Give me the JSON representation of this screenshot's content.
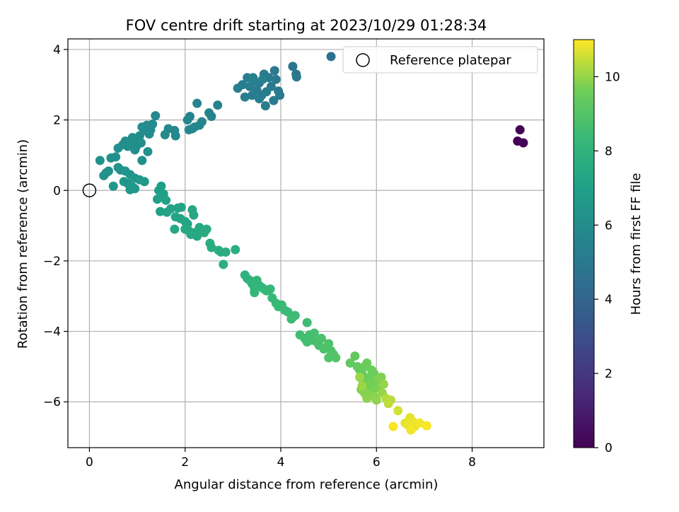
{
  "chart_data": {
    "type": "scatter",
    "title": "FOV centre drift starting at 2023/10/29 01:28:34",
    "xlabel": "Angular distance from reference (arcmin)",
    "ylabel": "Rotation from reference (arcmin)",
    "xlim": [
      -0.45,
      9.5
    ],
    "ylim": [
      -7.3,
      4.3
    ],
    "xticks": [
      0,
      2,
      4,
      6,
      8
    ],
    "xtick_labels": [
      "0",
      "2",
      "4",
      "6",
      "8"
    ],
    "yticks": [
      -6,
      -4,
      -2,
      0,
      2,
      4
    ],
    "ytick_labels": [
      "−6",
      "−4",
      "−2",
      "0",
      "2",
      "4"
    ],
    "grid": true,
    "legend": {
      "position": "top-right",
      "entries": [
        "Reference platepar"
      ]
    },
    "reference_point": {
      "x": 0,
      "y": 0,
      "label": "Reference platepar"
    },
    "colorbar": {
      "label": "Hours from first FF file",
      "range": [
        0,
        11
      ],
      "ticks": [
        0,
        2,
        4,
        6,
        8,
        10
      ],
      "tick_labels": [
        "0",
        "2",
        "4",
        "6",
        "8",
        "10"
      ],
      "colormap": "viridis"
    },
    "points": [
      [
        8.95,
        1.4,
        0.0
      ],
      [
        9.0,
        1.72,
        0.05
      ],
      [
        9.07,
        1.35,
        0.1
      ],
      [
        5.05,
        3.8,
        4.6
      ],
      [
        4.25,
        3.52,
        4.8
      ],
      [
        4.32,
        3.3,
        4.85
      ],
      [
        4.33,
        3.22,
        4.9
      ],
      [
        3.87,
        3.4,
        5.0
      ],
      [
        3.9,
        3.15,
        5.0
      ],
      [
        3.95,
        2.82,
        5.05
      ],
      [
        3.98,
        2.7,
        5.05
      ],
      [
        3.85,
        2.55,
        5.1
      ],
      [
        3.8,
        2.95,
        5.1
      ],
      [
        3.75,
        3.2,
        5.1
      ],
      [
        3.7,
        2.8,
        5.15
      ],
      [
        3.68,
        2.4,
        5.15
      ],
      [
        3.65,
        3.3,
        5.15
      ],
      [
        3.6,
        2.7,
        5.2
      ],
      [
        3.55,
        3.05,
        5.2
      ],
      [
        3.5,
        2.85,
        5.2
      ],
      [
        3.45,
        3.1,
        5.25
      ],
      [
        3.4,
        2.7,
        5.25
      ],
      [
        3.35,
        2.95,
        5.3
      ],
      [
        3.3,
        3.2,
        5.3
      ],
      [
        3.25,
        2.65,
        5.3
      ],
      [
        3.2,
        3.0,
        5.35
      ],
      [
        3.1,
        2.9,
        5.35
      ],
      [
        3.55,
        2.6,
        5.35
      ],
      [
        3.62,
        3.15,
        5.4
      ],
      [
        3.42,
        3.2,
        5.4
      ],
      [
        2.68,
        2.42,
        5.5
      ],
      [
        2.5,
        2.2,
        5.55
      ],
      [
        2.55,
        2.1,
        5.55
      ],
      [
        2.25,
        2.47,
        5.6
      ],
      [
        2.35,
        1.95,
        5.6
      ],
      [
        2.3,
        1.85,
        5.65
      ],
      [
        2.1,
        2.1,
        5.65
      ],
      [
        2.05,
        2.0,
        5.7
      ],
      [
        2.15,
        1.75,
        5.7
      ],
      [
        2.2,
        1.8,
        5.75
      ],
      [
        2.08,
        1.72,
        5.75
      ],
      [
        1.78,
        1.7,
        5.8
      ],
      [
        1.8,
        1.55,
        5.8
      ],
      [
        1.65,
        1.75,
        5.85
      ],
      [
        1.58,
        1.58,
        5.85
      ],
      [
        1.38,
        2.12,
        5.9
      ],
      [
        1.32,
        1.88,
        5.9
      ],
      [
        1.25,
        1.6,
        5.95
      ],
      [
        1.28,
        1.72,
        5.95
      ],
      [
        1.2,
        1.85,
        5.95
      ],
      [
        1.15,
        1.7,
        6.0
      ],
      [
        1.1,
        1.8,
        6.0
      ],
      [
        1.05,
        1.55,
        6.0
      ],
      [
        1.02,
        1.4,
        6.05
      ],
      [
        0.98,
        1.25,
        6.05
      ],
      [
        0.95,
        1.15,
        6.05
      ],
      [
        0.9,
        1.5,
        6.1
      ],
      [
        0.85,
        1.35,
        6.1
      ],
      [
        0.8,
        1.25,
        6.1
      ],
      [
        0.75,
        1.4,
        6.15
      ],
      [
        0.7,
        1.3,
        6.15
      ],
      [
        0.6,
        1.2,
        6.15
      ],
      [
        1.22,
        1.1,
        6.2
      ],
      [
        1.1,
        0.85,
        6.2
      ],
      [
        1.08,
        1.35,
        6.2
      ],
      [
        0.55,
        0.95,
        6.25
      ],
      [
        0.45,
        0.92,
        6.25
      ],
      [
        0.4,
        0.55,
        6.3
      ],
      [
        0.35,
        0.5,
        6.3
      ],
      [
        0.3,
        0.42,
        6.3
      ],
      [
        0.22,
        0.85,
        6.35
      ],
      [
        0.6,
        0.65,
        6.35
      ],
      [
        0.65,
        0.58,
        6.4
      ],
      [
        0.75,
        0.55,
        6.4
      ],
      [
        0.85,
        0.45,
        6.45
      ],
      [
        0.95,
        0.35,
        6.45
      ],
      [
        0.72,
        0.25,
        6.5
      ],
      [
        0.8,
        0.2,
        6.5
      ],
      [
        0.5,
        0.12,
        6.55
      ],
      [
        0.9,
        0.1,
        6.55
      ],
      [
        0.95,
        0.05,
        6.6
      ],
      [
        0.85,
        0.02,
        6.6
      ],
      [
        1.05,
        0.3,
        6.65
      ],
      [
        1.15,
        0.25,
        6.65
      ],
      [
        1.5,
        0.12,
        6.9
      ],
      [
        1.45,
        0.0,
        6.95
      ],
      [
        1.55,
        -0.1,
        7.0
      ],
      [
        1.42,
        -0.25,
        7.0
      ],
      [
        1.6,
        -0.28,
        7.05
      ],
      [
        1.48,
        -0.6,
        7.05
      ],
      [
        1.62,
        -0.62,
        7.1
      ],
      [
        1.7,
        -0.52,
        7.1
      ],
      [
        1.85,
        -0.5,
        7.15
      ],
      [
        1.92,
        -0.48,
        7.15
      ],
      [
        1.8,
        -0.75,
        7.2
      ],
      [
        1.9,
        -0.8,
        7.2
      ],
      [
        2.0,
        -0.88,
        7.25
      ],
      [
        2.05,
        -0.95,
        7.25
      ],
      [
        2.15,
        -0.55,
        7.3
      ],
      [
        2.18,
        -0.7,
        7.3
      ],
      [
        1.78,
        -1.1,
        7.35
      ],
      [
        2.0,
        -1.1,
        7.35
      ],
      [
        2.08,
        -1.15,
        7.4
      ],
      [
        2.12,
        -1.25,
        7.4
      ],
      [
        2.2,
        -1.2,
        7.45
      ],
      [
        2.25,
        -1.3,
        7.45
      ],
      [
        2.3,
        -1.05,
        7.5
      ],
      [
        2.35,
        -1.15,
        7.5
      ],
      [
        2.4,
        -1.2,
        7.55
      ],
      [
        2.45,
        -1.1,
        7.55
      ],
      [
        2.52,
        -1.5,
        7.6
      ],
      [
        2.55,
        -1.62,
        7.6
      ],
      [
        2.7,
        -1.7,
        7.65
      ],
      [
        2.85,
        -1.75,
        7.65
      ],
      [
        2.75,
        -1.75,
        7.7
      ],
      [
        3.05,
        -1.68,
        7.7
      ],
      [
        2.8,
        -2.1,
        7.75
      ],
      [
        3.25,
        -2.4,
        8.0
      ],
      [
        3.3,
        -2.5,
        8.0
      ],
      [
        3.35,
        -2.55,
        8.05
      ],
      [
        3.4,
        -2.65,
        8.05
      ],
      [
        3.45,
        -2.8,
        8.1
      ],
      [
        3.5,
        -2.55,
        8.1
      ],
      [
        3.55,
        -2.7,
        8.15
      ],
      [
        3.6,
        -2.75,
        8.15
      ],
      [
        3.45,
        -2.9,
        8.2
      ],
      [
        3.65,
        -2.8,
        8.2
      ],
      [
        3.7,
        -2.85,
        8.25
      ],
      [
        3.78,
        -2.8,
        8.25
      ],
      [
        3.82,
        -3.05,
        8.3
      ],
      [
        3.9,
        -3.2,
        8.3
      ],
      [
        3.95,
        -3.3,
        8.35
      ],
      [
        4.02,
        -3.25,
        8.35
      ],
      [
        4.08,
        -3.4,
        8.4
      ],
      [
        4.15,
        -3.45,
        8.4
      ],
      [
        4.25,
        -3.6,
        8.45
      ],
      [
        4.3,
        -3.55,
        8.45
      ],
      [
        4.22,
        -3.65,
        8.5
      ],
      [
        4.55,
        -3.75,
        8.5
      ],
      [
        4.4,
        -4.1,
        8.55
      ],
      [
        4.5,
        -4.2,
        8.6
      ],
      [
        4.55,
        -4.3,
        8.6
      ],
      [
        4.6,
        -4.1,
        8.65
      ],
      [
        4.65,
        -4.25,
        8.65
      ],
      [
        4.7,
        -4.05,
        8.7
      ],
      [
        4.75,
        -4.3,
        8.7
      ],
      [
        4.8,
        -4.4,
        8.75
      ],
      [
        4.85,
        -4.2,
        8.75
      ],
      [
        4.9,
        -4.5,
        8.8
      ],
      [
        4.95,
        -4.45,
        8.8
      ],
      [
        5.0,
        -4.35,
        8.85
      ],
      [
        5.05,
        -4.55,
        8.9
      ],
      [
        5.1,
        -4.65,
        8.9
      ],
      [
        5.0,
        -4.75,
        8.95
      ],
      [
        5.15,
        -4.75,
        9.0
      ],
      [
        5.45,
        -4.9,
        9.3
      ],
      [
        5.55,
        -4.7,
        9.35
      ],
      [
        5.6,
        -5.0,
        9.4
      ],
      [
        5.65,
        -5.1,
        9.4
      ],
      [
        5.7,
        -5.2,
        9.45
      ],
      [
        5.75,
        -5.0,
        9.45
      ],
      [
        5.8,
        -4.9,
        9.5
      ],
      [
        5.85,
        -5.3,
        9.5
      ],
      [
        5.9,
        -5.1,
        9.55
      ],
      [
        5.95,
        -5.2,
        9.55
      ],
      [
        5.72,
        -5.4,
        9.6
      ],
      [
        5.78,
        -5.5,
        9.6
      ],
      [
        5.82,
        -5.6,
        9.65
      ],
      [
        5.88,
        -5.45,
        9.65
      ],
      [
        5.92,
        -5.7,
        9.7
      ],
      [
        5.98,
        -5.55,
        9.7
      ],
      [
        6.02,
        -5.35,
        9.75
      ],
      [
        6.05,
        -5.6,
        9.75
      ],
      [
        6.1,
        -5.3,
        9.8
      ],
      [
        5.68,
        -5.65,
        9.8
      ],
      [
        5.75,
        -5.75,
        9.85
      ],
      [
        5.85,
        -5.8,
        9.85
      ],
      [
        5.95,
        -5.85,
        9.9
      ],
      [
        5.8,
        -5.9,
        9.9
      ],
      [
        6.0,
        -5.95,
        9.95
      ],
      [
        6.12,
        -5.75,
        10.0
      ],
      [
        6.15,
        -5.5,
        10.0
      ],
      [
        5.65,
        -5.3,
        10.05
      ],
      [
        5.7,
        -5.55,
        10.05
      ],
      [
        6.2,
        -5.9,
        10.3
      ],
      [
        6.3,
        -5.95,
        10.35
      ],
      [
        6.25,
        -6.05,
        10.4
      ],
      [
        6.45,
        -6.25,
        10.6
      ],
      [
        6.6,
        -6.6,
        10.7
      ],
      [
        6.7,
        -6.45,
        10.75
      ],
      [
        6.75,
        -6.55,
        10.8
      ],
      [
        6.8,
        -6.7,
        10.85
      ],
      [
        6.65,
        -6.65,
        10.85
      ],
      [
        6.72,
        -6.8,
        10.9
      ],
      [
        6.9,
        -6.6,
        10.9
      ],
      [
        7.05,
        -6.68,
        10.95
      ],
      [
        6.35,
        -6.7,
        10.95
      ]
    ]
  }
}
